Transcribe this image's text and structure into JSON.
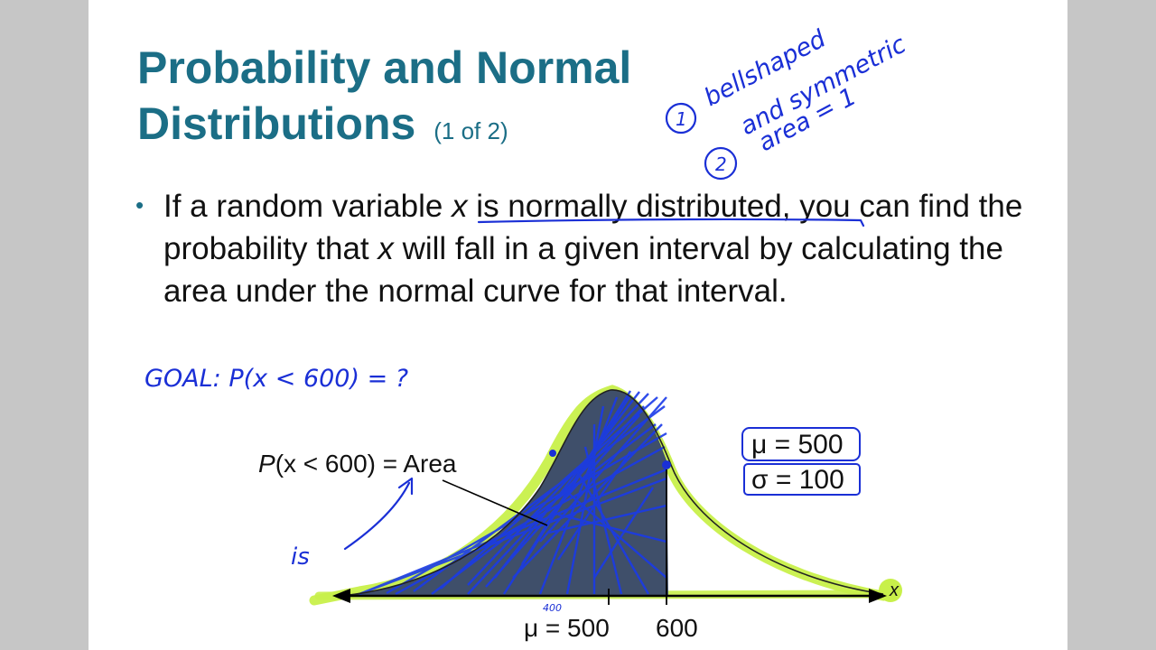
{
  "slide": {
    "title_line1": "Probability and Normal",
    "title_line2": "Distributions",
    "title_part": "(1 of 2)",
    "bullet": {
      "pre": "If a random variable ",
      "var1": "x",
      "mid1": " is normally distributed",
      "mid2": ", you can find the probability that ",
      "var2": "x",
      "post": " will fall in a given interval by calculating the area under the normal curve for that interval."
    }
  },
  "figure": {
    "area_label_p": "P",
    "area_label_rest": "(x < 600) = Area",
    "mu_box": "μ = 500",
    "sigma_box": "σ = 100",
    "axis_var": "x",
    "tick_mu": "μ = 500",
    "tick_600": "600",
    "tick_400": "400"
  },
  "annotations": {
    "note1_number": "1",
    "note1_line1": "bellshaped",
    "note1_line2": "and symmetric",
    "note2_number": "2",
    "note2_text": "area = 1",
    "goal": "GOAL:  P(x < 600) = ?",
    "is_word": "is"
  },
  "colors": {
    "title": "#1b6e86",
    "ink": "#1a2fd6",
    "highlight": "#c8f04a",
    "curve_fill": "#3f4f6a"
  }
}
